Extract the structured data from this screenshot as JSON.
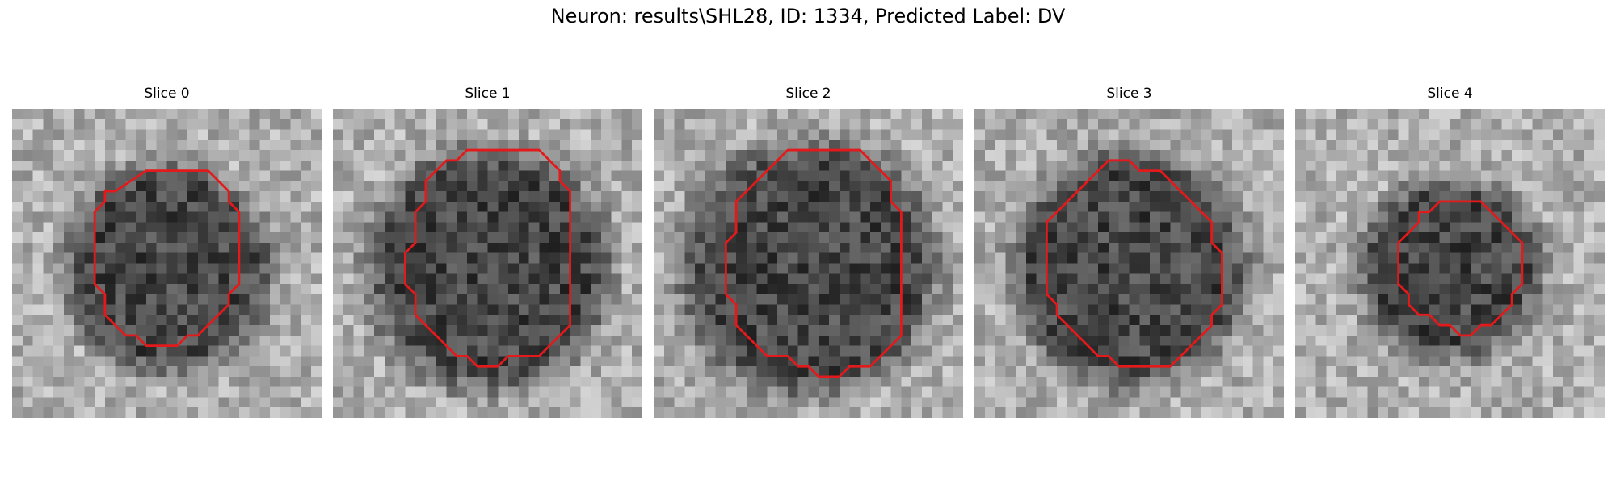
{
  "figure": {
    "title": "Neuron: results\\SHL28, ID: 1334, Predicted Label: DV"
  },
  "colors": {
    "contour": "#e31a1c",
    "background": "#ffffff"
  },
  "slices": [
    {
      "title": "Slice 0",
      "blob_radius": 0.31,
      "seed": 11
    },
    {
      "title": "Slice 1",
      "blob_radius": 0.36,
      "seed": 23
    },
    {
      "title": "Slice 2",
      "blob_radius": 0.38,
      "seed": 37
    },
    {
      "title": "Slice 3",
      "blob_radius": 0.35,
      "seed": 49
    },
    {
      "title": "Slice 4",
      "blob_radius": 0.27,
      "seed": 61
    }
  ]
}
